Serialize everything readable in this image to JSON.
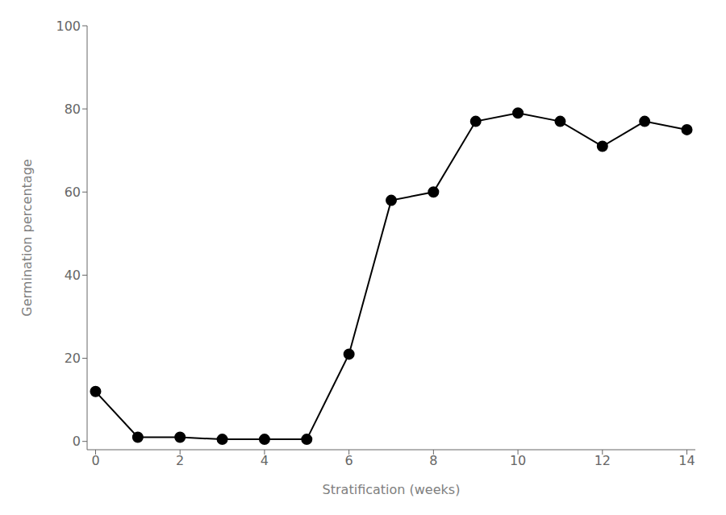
{
  "chart_data": {
    "type": "line",
    "x": [
      0,
      1,
      2,
      3,
      4,
      5,
      6,
      7,
      8,
      9,
      10,
      11,
      12,
      13,
      14
    ],
    "values": [
      12,
      1,
      1,
      0.5,
      0.5,
      0.5,
      21,
      58,
      60,
      77,
      79,
      77,
      71,
      77,
      75
    ],
    "xlim": [
      -0.2,
      14.2
    ],
    "ylim": [
      -2,
      100
    ],
    "xticks": [
      0,
      2,
      4,
      6,
      8,
      10,
      12,
      14
    ],
    "yticks": [
      0,
      20,
      40,
      60,
      80,
      100
    ],
    "xlabel": "Stratification (weeks)",
    "ylabel": "Germination percentage",
    "color": "#000000",
    "marker": "circle",
    "line_style": "solid",
    "grid": false
  }
}
